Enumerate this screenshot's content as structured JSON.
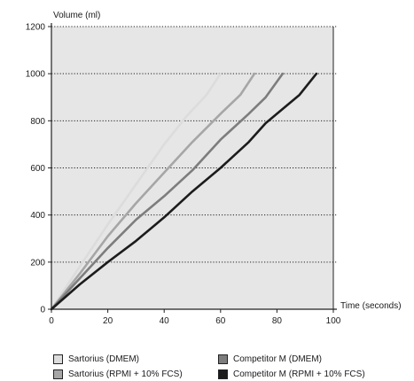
{
  "chart_data": {
    "type": "line",
    "title": "",
    "xlabel": "Time (seconds)",
    "ylabel": "Volume (ml)",
    "xlim": [
      0,
      100
    ],
    "ylim": [
      0,
      1200
    ],
    "xticks": [
      "0",
      "20",
      "40",
      "60",
      "80",
      "100"
    ],
    "yticks": [
      "0",
      "200",
      "400",
      "600",
      "800",
      "1000",
      "1200"
    ],
    "grid": "horizontal dotted",
    "legend_position": "bottom",
    "series": [
      {
        "name": "Sartorius (DMEM)",
        "color": "#dcdcdc",
        "x": [
          0,
          10,
          20,
          30,
          40,
          48,
          55,
          60
        ],
        "y": [
          0,
          180,
          360,
          530,
          700,
          820,
          910,
          1000
        ]
      },
      {
        "name": "Sartorius (RPMI + 10% FCS)",
        "color": "#a6a6a6",
        "x": [
          0,
          10,
          20,
          30,
          40,
          50,
          60,
          67,
          72
        ],
        "y": [
          0,
          150,
          310,
          450,
          580,
          710,
          830,
          910,
          1000
        ]
      },
      {
        "name": "Competitor M (DMEM)",
        "color": "#7d7d7d",
        "x": [
          0,
          10,
          20,
          30,
          40,
          50,
          60,
          70,
          76,
          82
        ],
        "y": [
          0,
          130,
          260,
          380,
          480,
          590,
          720,
          830,
          900,
          1000
        ]
      },
      {
        "name": "Competitor M (RPMI + 10% FCS)",
        "color": "#1c1c1c",
        "x": [
          0,
          10,
          20,
          30,
          40,
          50,
          60,
          70,
          76,
          82,
          88,
          94
        ],
        "y": [
          0,
          105,
          200,
          290,
          390,
          500,
          600,
          710,
          790,
          850,
          910,
          1000
        ]
      }
    ]
  },
  "legend": {
    "order": [
      0,
      2,
      1,
      3
    ]
  }
}
